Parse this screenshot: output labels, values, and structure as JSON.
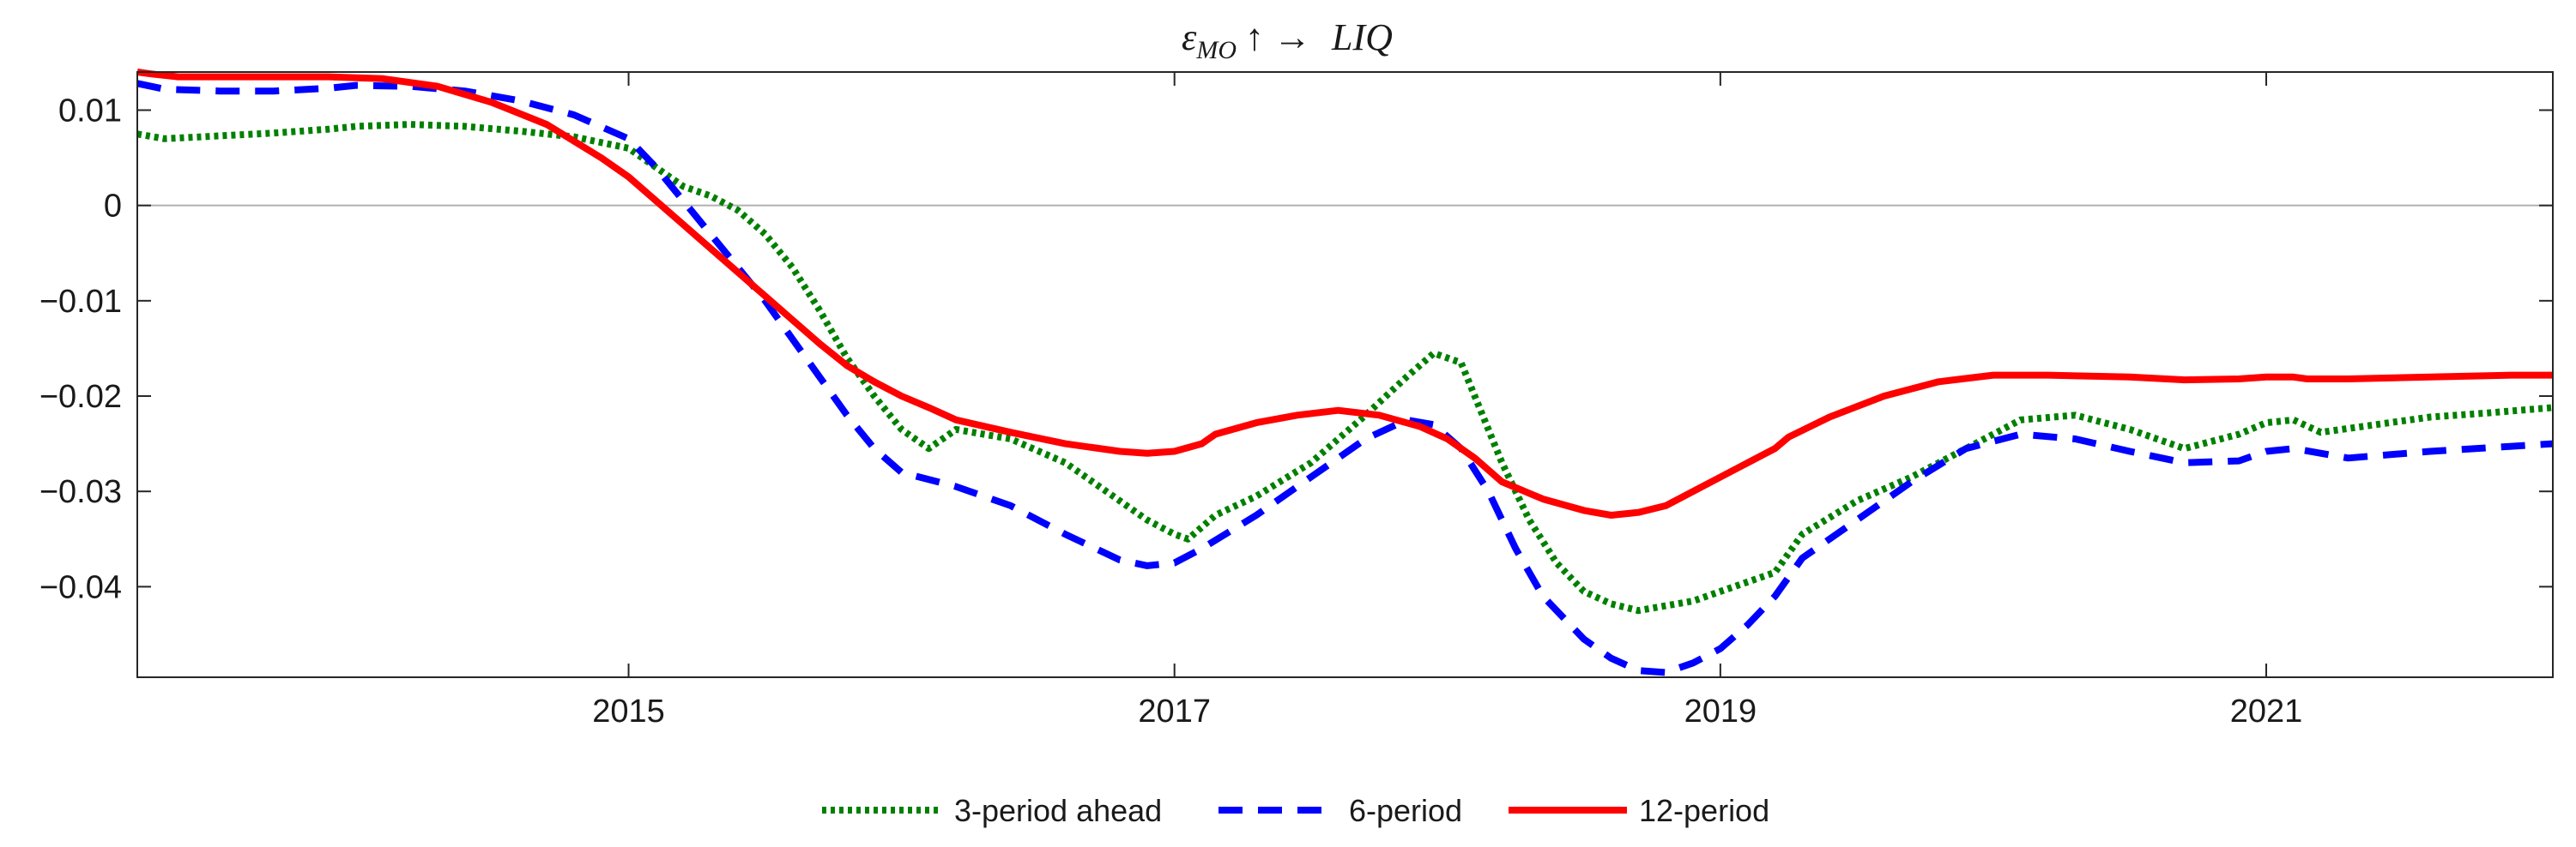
{
  "chart_data": {
    "type": "line",
    "title": {
      "symbol": "ε",
      "subscript": "MO",
      "arrows": "↑ →",
      "target": "LIQ",
      "full": "εMO ↑ → LIQ"
    },
    "xlabel": "",
    "ylabel": "",
    "xlim": [
      2013.2,
      2022.05
    ],
    "ylim": [
      -0.0495,
      0.014
    ],
    "xticks": [
      2015,
      2017,
      2019,
      2021
    ],
    "xtick_labels": [
      "2015",
      "2017",
      "2019",
      "2021"
    ],
    "yticks": [
      0.01,
      0,
      -0.01,
      -0.02,
      -0.03,
      -0.04
    ],
    "ytick_labels": [
      "0.01",
      "0",
      "-0.01",
      "-0.02",
      "-0.03",
      "-0.04"
    ],
    "zero_line": true,
    "grid": false,
    "legend_position": "bottom-center",
    "series": [
      {
        "name": "3-period ahead",
        "color": "#008000",
        "style": "dotted",
        "x": [
          2013.2,
          2013.3,
          2013.5,
          2013.7,
          2013.9,
          2014.0,
          2014.2,
          2014.4,
          2014.6,
          2014.8,
          2015.0,
          2015.1,
          2015.2,
          2015.3,
          2015.4,
          2015.5,
          2015.6,
          2015.7,
          2015.8,
          2015.9,
          2016.0,
          2016.1,
          2016.2,
          2016.4,
          2016.6,
          2016.8,
          2016.9,
          2017.0,
          2017.05,
          2017.15,
          2017.3,
          2017.5,
          2017.7,
          2017.85,
          2017.95,
          2018.05,
          2018.1,
          2018.2,
          2018.3,
          2018.4,
          2018.5,
          2018.6,
          2018.7,
          2018.8,
          2018.9,
          2019.0,
          2019.1,
          2019.2,
          2019.3,
          2019.5,
          2019.7,
          2019.9,
          2020.1,
          2020.3,
          2020.5,
          2020.7,
          2020.9,
          2021.0,
          2021.1,
          2021.2,
          2021.4,
          2021.6,
          2021.8,
          2022.05
        ],
        "values": [
          0.0075,
          0.007,
          0.0073,
          0.0076,
          0.008,
          0.0083,
          0.0085,
          0.0083,
          0.0078,
          0.0072,
          0.006,
          0.004,
          0.002,
          0.001,
          -0.0005,
          -0.003,
          -0.0065,
          -0.011,
          -0.016,
          -0.02,
          -0.0235,
          -0.0255,
          -0.0235,
          -0.0245,
          -0.027,
          -0.031,
          -0.033,
          -0.0345,
          -0.035,
          -0.0325,
          -0.0305,
          -0.027,
          -0.022,
          -0.018,
          -0.0155,
          -0.0165,
          -0.02,
          -0.027,
          -0.033,
          -0.0375,
          -0.0405,
          -0.0418,
          -0.0425,
          -0.042,
          -0.0415,
          -0.0405,
          -0.0395,
          -0.0385,
          -0.0345,
          -0.031,
          -0.0285,
          -0.0255,
          -0.0225,
          -0.022,
          -0.0235,
          -0.0255,
          -0.024,
          -0.0228,
          -0.0225,
          -0.0238,
          -0.023,
          -0.0222,
          -0.0218,
          -0.0212
        ]
      },
      {
        "name": "6-period",
        "color": "#0000ff",
        "style": "dashed",
        "x": [
          2013.2,
          2013.3,
          2013.5,
          2013.7,
          2013.9,
          2014.0,
          2014.2,
          2014.4,
          2014.6,
          2014.8,
          2015.0,
          2015.1,
          2015.2,
          2015.3,
          2015.4,
          2015.5,
          2015.6,
          2015.7,
          2015.8,
          2015.9,
          2016.0,
          2016.2,
          2016.4,
          2016.6,
          2016.8,
          2016.9,
          2017.0,
          2017.1,
          2017.3,
          2017.5,
          2017.7,
          2017.85,
          2017.95,
          2018.05,
          2018.15,
          2018.25,
          2018.35,
          2018.5,
          2018.6,
          2018.7,
          2018.8,
          2018.9,
          2019.0,
          2019.1,
          2019.2,
          2019.3,
          2019.5,
          2019.7,
          2019.9,
          2020.1,
          2020.3,
          2020.5,
          2020.7,
          2020.9,
          2021.0,
          2021.1,
          2021.3,
          2021.6,
          2022.05
        ],
        "values": [
          0.0128,
          0.0122,
          0.012,
          0.012,
          0.0123,
          0.0126,
          0.0125,
          0.012,
          0.011,
          0.0095,
          0.007,
          0.004,
          0.0005,
          -0.003,
          -0.0065,
          -0.01,
          -0.014,
          -0.018,
          -0.022,
          -0.0255,
          -0.028,
          -0.0295,
          -0.0315,
          -0.0345,
          -0.0372,
          -0.0378,
          -0.0375,
          -0.036,
          -0.0325,
          -0.0285,
          -0.0245,
          -0.0225,
          -0.023,
          -0.0255,
          -0.03,
          -0.036,
          -0.041,
          -0.0455,
          -0.0475,
          -0.0488,
          -0.049,
          -0.048,
          -0.0465,
          -0.044,
          -0.041,
          -0.037,
          -0.033,
          -0.029,
          -0.0255,
          -0.024,
          -0.0245,
          -0.0258,
          -0.027,
          -0.0268,
          -0.0258,
          -0.0255,
          -0.0265,
          -0.0258,
          -0.025
        ]
      },
      {
        "name": "12-period",
        "color": "#ff0000",
        "style": "solid",
        "x": [
          2013.2,
          2013.25,
          2013.35,
          2013.5,
          2013.7,
          2013.9,
          2014.1,
          2014.3,
          2014.5,
          2014.7,
          2014.9,
          2015.0,
          2015.1,
          2015.2,
          2015.3,
          2015.4,
          2015.5,
          2015.6,
          2015.7,
          2015.8,
          2015.9,
          2016.0,
          2016.1,
          2016.2,
          2016.4,
          2016.6,
          2016.8,
          2016.9,
          2017.0,
          2017.1,
          2017.15,
          2017.3,
          2017.45,
          2017.6,
          2017.75,
          2017.9,
          2018.0,
          2018.1,
          2018.2,
          2018.35,
          2018.5,
          2018.6,
          2018.7,
          2018.8,
          2018.9,
          2019.0,
          2019.1,
          2019.2,
          2019.25,
          2019.4,
          2019.6,
          2019.8,
          2020.0,
          2020.2,
          2020.5,
          2020.7,
          2020.9,
          2021.0,
          2021.1,
          2021.15,
          2021.3,
          2021.6,
          2021.9,
          2022.05
        ],
        "values": [
          0.014,
          0.0138,
          0.0135,
          0.0135,
          0.0135,
          0.0135,
          0.0133,
          0.0125,
          0.0108,
          0.0085,
          0.005,
          0.003,
          0.0005,
          -0.002,
          -0.0045,
          -0.007,
          -0.0095,
          -0.012,
          -0.0145,
          -0.0168,
          -0.0185,
          -0.02,
          -0.0212,
          -0.0225,
          -0.0238,
          -0.025,
          -0.0258,
          -0.026,
          -0.0258,
          -0.025,
          -0.024,
          -0.0228,
          -0.022,
          -0.0215,
          -0.022,
          -0.0232,
          -0.0245,
          -0.0265,
          -0.029,
          -0.0308,
          -0.032,
          -0.0325,
          -0.0322,
          -0.0315,
          -0.03,
          -0.0285,
          -0.027,
          -0.0255,
          -0.0243,
          -0.0222,
          -0.02,
          -0.0185,
          -0.0178,
          -0.0178,
          -0.018,
          -0.0183,
          -0.0182,
          -0.018,
          -0.018,
          -0.0182,
          -0.0182,
          -0.018,
          -0.0178,
          -0.0178
        ]
      }
    ]
  }
}
